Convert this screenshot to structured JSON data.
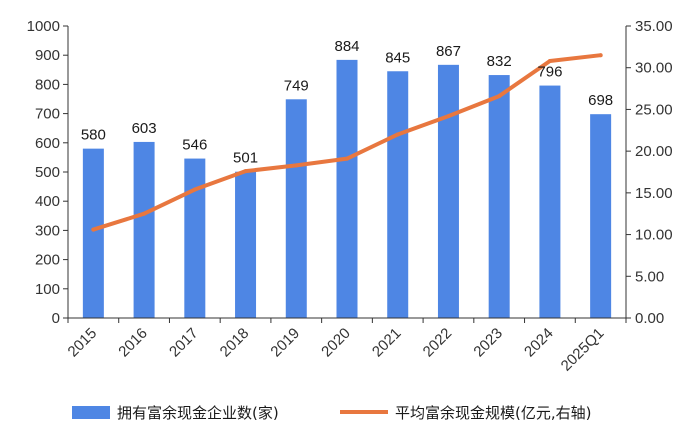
{
  "chart_data": {
    "type": "bar",
    "categories": [
      "2015",
      "2016",
      "2017",
      "2018",
      "2019",
      "2020",
      "2021",
      "2022",
      "2023",
      "2024",
      "2025Q1"
    ],
    "series": [
      {
        "name": "拥有富余现金企业数(家)",
        "type": "bar",
        "axis": "left",
        "values": [
          580,
          603,
          546,
          501,
          749,
          884,
          845,
          867,
          832,
          796,
          698
        ],
        "labels": [
          "580",
          "603",
          "546",
          "501",
          "749",
          "884",
          "845",
          "867",
          "832",
          "796",
          "698"
        ]
      },
      {
        "name": "平均富余现金规模(亿元,右轴)",
        "type": "line",
        "axis": "right",
        "values": [
          10.6,
          12.5,
          15.4,
          17.6,
          18.3,
          19.1,
          22.0,
          24.2,
          26.6,
          30.8,
          31.5
        ]
      }
    ],
    "y_left": {
      "range": [
        0,
        1000
      ],
      "ticks": [
        "0",
        "100",
        "200",
        "300",
        "400",
        "500",
        "600",
        "700",
        "800",
        "900",
        "1000"
      ]
    },
    "y_right": {
      "range": [
        0,
        35
      ],
      "ticks": [
        "0.00",
        "5.00",
        "10.00",
        "15.00",
        "20.00",
        "25.00",
        "30.00",
        "35.00"
      ]
    },
    "grid": false,
    "legend": "bottom",
    "colors": {
      "bar": "#4e86e4",
      "line": "#e8773f",
      "axis": "#333333"
    }
  }
}
